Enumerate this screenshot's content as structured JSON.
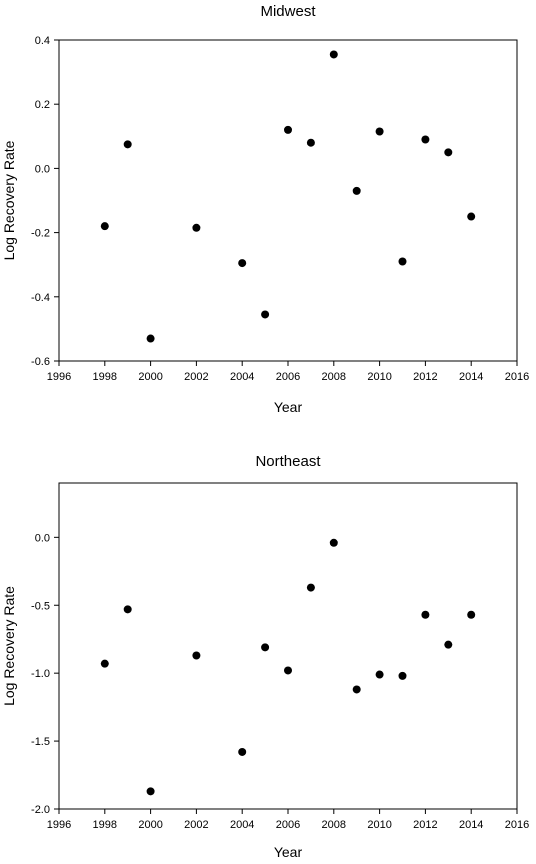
{
  "chart_data": [
    {
      "type": "scatter",
      "title": "Midwest",
      "xlabel": "Year",
      "ylabel": "Log Recovery Rate",
      "xlim": [
        1996,
        2016
      ],
      "ylim": [
        -0.6,
        0.4
      ],
      "xticks": [
        1996,
        1998,
        2000,
        2002,
        2004,
        2006,
        2008,
        2010,
        2012,
        2014,
        2016
      ],
      "yticks": [
        -0.6,
        -0.4,
        -0.2,
        0.0,
        0.2,
        0.4
      ],
      "ytick_labels": [
        "-0.6",
        "-0.4",
        "-0.2",
        "0.0",
        "0.2",
        "0.4"
      ],
      "grid": false,
      "points": [
        {
          "x": 1998,
          "y": -0.18
        },
        {
          "x": 1999,
          "y": 0.075
        },
        {
          "x": 2000,
          "y": -0.53
        },
        {
          "x": 2002,
          "y": -0.185
        },
        {
          "x": 2004,
          "y": -0.295
        },
        {
          "x": 2005,
          "y": -0.455
        },
        {
          "x": 2006,
          "y": 0.12
        },
        {
          "x": 2007,
          "y": 0.08
        },
        {
          "x": 2008,
          "y": 0.355
        },
        {
          "x": 2009,
          "y": -0.07
        },
        {
          "x": 2010,
          "y": 0.115
        },
        {
          "x": 2011,
          "y": -0.29
        },
        {
          "x": 2012,
          "y": 0.09
        },
        {
          "x": 2013,
          "y": 0.05
        },
        {
          "x": 2014,
          "y": -0.15
        }
      ],
      "marker_color": "#000000"
    },
    {
      "type": "scatter",
      "title": "Northeast",
      "xlabel": "Year",
      "ylabel": "Log Recovery Rate",
      "xlim": [
        1996,
        2016
      ],
      "ylim": [
        -2.0,
        0.4
      ],
      "xticks": [
        1996,
        1998,
        2000,
        2002,
        2004,
        2006,
        2008,
        2010,
        2012,
        2014,
        2016
      ],
      "yticks": [
        -2.0,
        -1.5,
        -1.0,
        -0.5,
        0.0
      ],
      "ytick_labels": [
        "-2.0",
        "-1.5",
        "-1.0",
        "-0.5",
        "0.0"
      ],
      "grid": false,
      "points": [
        {
          "x": 1998,
          "y": -0.93
        },
        {
          "x": 1999,
          "y": -0.53
        },
        {
          "x": 2000,
          "y": -1.87
        },
        {
          "x": 2002,
          "y": -0.87
        },
        {
          "x": 2004,
          "y": -1.58
        },
        {
          "x": 2005,
          "y": -0.81
        },
        {
          "x": 2006,
          "y": -0.98
        },
        {
          "x": 2007,
          "y": -0.37
        },
        {
          "x": 2008,
          "y": -0.04
        },
        {
          "x": 2009,
          "y": -1.12
        },
        {
          "x": 2010,
          "y": -1.01
        },
        {
          "x": 2011,
          "y": -1.02
        },
        {
          "x": 2012,
          "y": -0.57
        },
        {
          "x": 2013,
          "y": -0.79
        },
        {
          "x": 2014,
          "y": -0.57
        }
      ],
      "marker_color": "#000000"
    }
  ]
}
